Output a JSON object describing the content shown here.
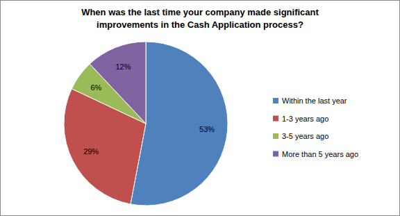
{
  "chart_data": {
    "type": "pie",
    "title": "When was the last time your company made significant improvements in the Cash Application process?",
    "categories": [
      "Within the last year",
      "1-3 years ago",
      "3-5 years ago",
      "More than 5 years ago"
    ],
    "values": [
      53,
      29,
      6,
      12
    ],
    "value_labels": [
      "53%",
      "29%",
      "6%",
      "12%"
    ],
    "colors": [
      "#4f81bd",
      "#c0504d",
      "#9bbb59",
      "#8064a2"
    ],
    "data_labels": true,
    "legend": "right"
  }
}
